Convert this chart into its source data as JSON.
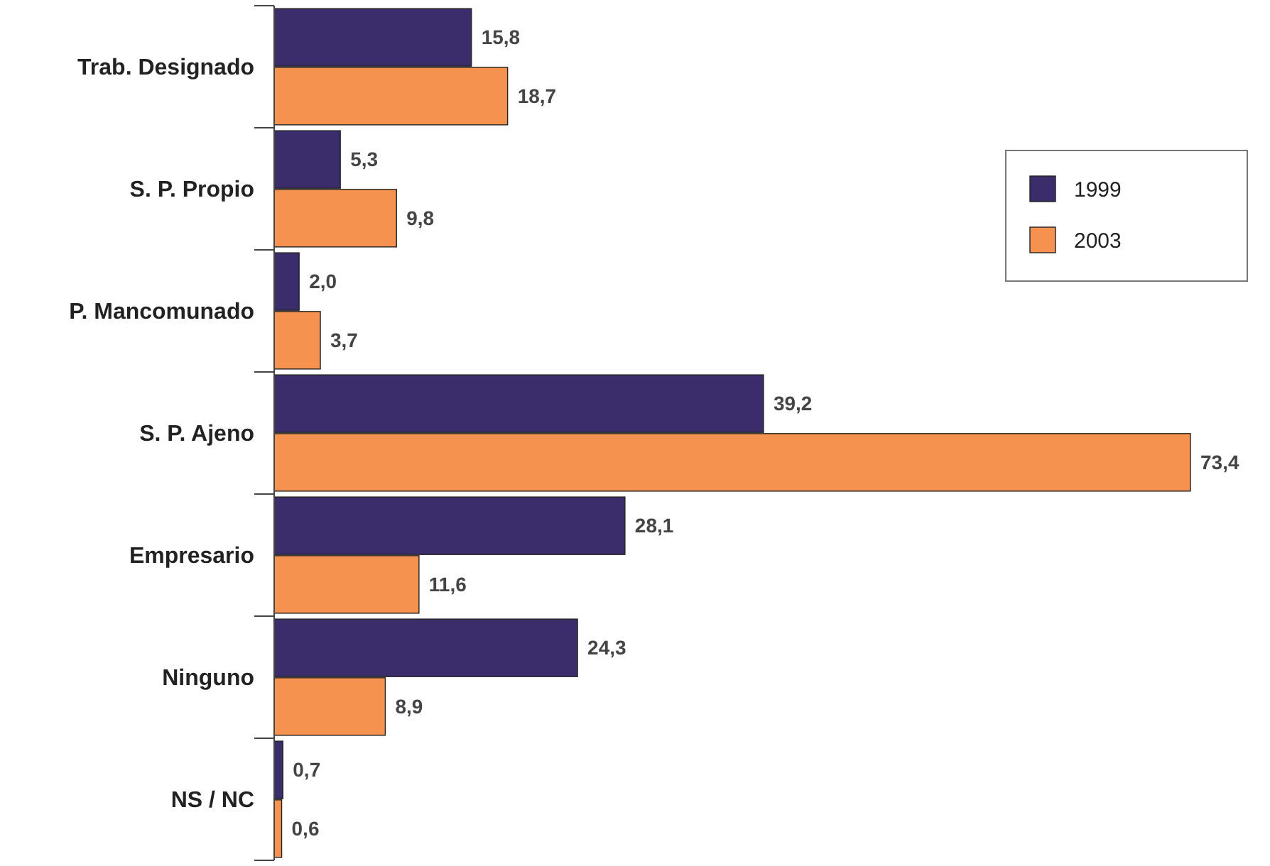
{
  "chart_data": {
    "type": "bar",
    "orientation": "horizontal",
    "categories": [
      "Trab. Designado",
      "S. P. Propio",
      "P. Mancomunado",
      "S. P. Ajeno",
      "Empresario",
      "Ninguno",
      "NS / NC"
    ],
    "series": [
      {
        "name": "1999",
        "color": "#3b2d6b",
        "values": [
          15.8,
          5.3,
          2.0,
          39.2,
          28.1,
          24.3,
          0.7
        ],
        "value_labels": [
          "15,8",
          "5,3",
          "2,0",
          "39,2",
          "28,1",
          "24,3",
          "0,7"
        ]
      },
      {
        "name": "2003",
        "color": "#f5924f",
        "values": [
          18.7,
          9.8,
          3.7,
          73.4,
          11.6,
          8.9,
          0.6
        ],
        "value_labels": [
          "18,7",
          "9,8",
          "3,7",
          "73,4",
          "11,6",
          "8,9",
          "0,6"
        ]
      }
    ],
    "legend": "top right"
  }
}
